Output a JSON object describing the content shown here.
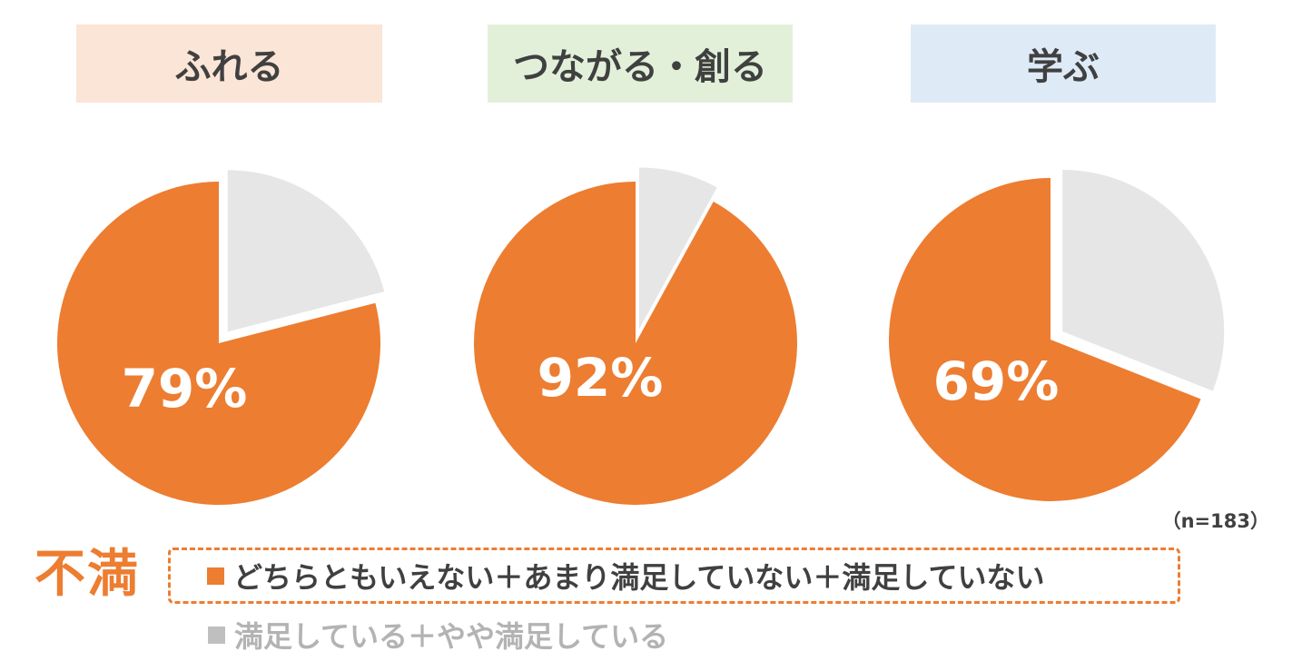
{
  "headers": [
    {
      "label": "ふれる",
      "bg": "#FBE5D6"
    },
    {
      "label": "つながる・創る",
      "bg": "#E2F0D9"
    },
    {
      "label": "学ぶ",
      "bg": "#DEEBF7"
    }
  ],
  "chart_data": {
    "type": "pie",
    "series_labels": [
      "どちらともいえない＋あまり満足していない＋満足していない",
      "満足している＋やや満足している"
    ],
    "charts": [
      {
        "category": "ふれる",
        "label": "79%",
        "values": [
          79,
          21
        ]
      },
      {
        "category": "つながる・創る",
        "label": "92%",
        "values": [
          92,
          8
        ]
      },
      {
        "category": "学ぶ",
        "label": "69%",
        "values": [
          69,
          31
        ]
      }
    ],
    "colors": {
      "main": "#ED7D31",
      "rest": "#E7E6E6"
    }
  },
  "sample_size": "（n=183）",
  "legend": {
    "dissatisfied_title": "不満",
    "dissatisfied_label": "どちらともいえない＋あまり満足していない＋満足していない",
    "satisfied_label": "満足している＋やや満足している",
    "dissatisfied_color": "#ED7D31",
    "satisfied_color": "#BFBFBF"
  }
}
